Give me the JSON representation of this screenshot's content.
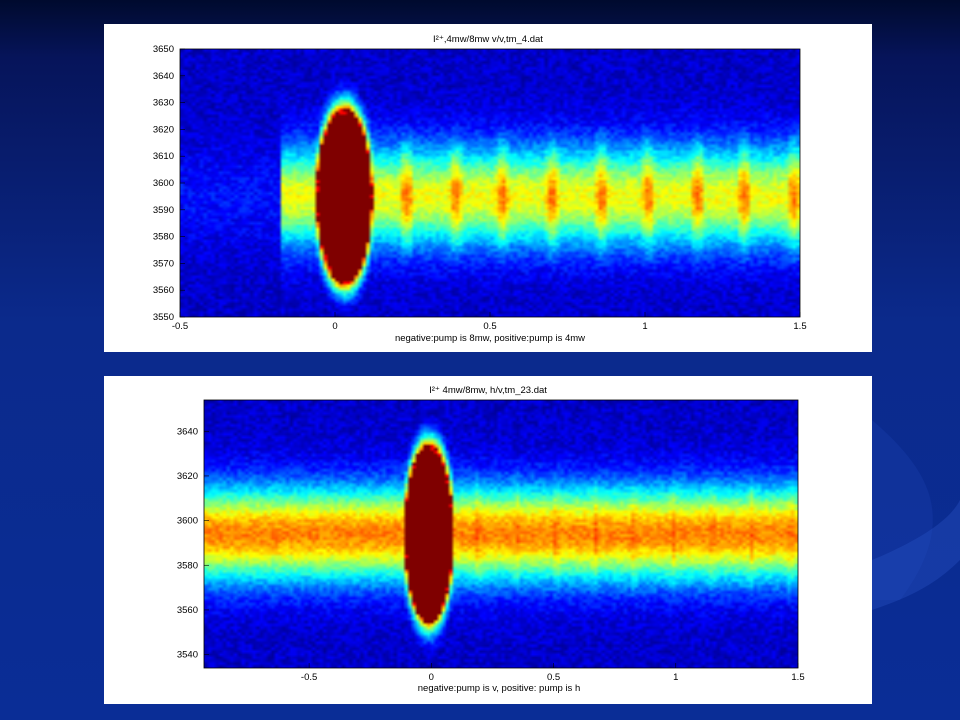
{
  "slide": {
    "background_top": "#000a2e",
    "background_bottom": "#0a2d96",
    "decoration": "faint-swoosh-right"
  },
  "chart_data": [
    {
      "type": "heatmap",
      "title": "I²⁺,4mw/8mw v/v,tm_4.dat",
      "xlabel": "negative:pump is 8mw, positive:pump is 4mw",
      "ylabel": "",
      "xlim": [
        -0.5,
        1.5
      ],
      "ylim": [
        3550,
        3650
      ],
      "xticks": [
        -0.5,
        0,
        0.5,
        1,
        1.5
      ],
      "xtick_labels": [
        "-0.5",
        "0",
        "0.5",
        "1",
        "1.5"
      ],
      "yticks": [
        3550,
        3560,
        3570,
        3580,
        3590,
        3600,
        3610,
        3620,
        3630,
        3640,
        3650
      ],
      "ytick_labels": [
        "3550",
        "3560",
        "3570",
        "3580",
        "3590",
        "3600",
        "3610",
        "3620",
        "3630",
        "3640",
        "3650"
      ],
      "colormap": "jet",
      "band_center": 3595,
      "band_half_width": 23,
      "band_start_x": -0.18,
      "baseline_intensity": 0.6,
      "main_peak": {
        "x": 0.03,
        "y": 3595,
        "half_width_x": 0.09,
        "half_height_y": 33,
        "intensity": 1.0
      },
      "revival_peaks_x": [
        0.23,
        0.39,
        0.54,
        0.7,
        0.86,
        1.01,
        1.17,
        1.32,
        1.48
      ],
      "revival_peak_intensity": 0.85
    },
    {
      "type": "heatmap",
      "title": "I²⁺ 4mw/8mw, h/v,tm_23.dat",
      "xlabel": "negative:pump is v, positive: pump is h",
      "ylabel": "",
      "xlim": [
        -0.93,
        1.5
      ],
      "ylim": [
        3534,
        3654
      ],
      "xticks": [
        -0.5,
        0,
        0.5,
        1,
        1.5
      ],
      "xtick_labels": [
        "-0.5",
        "0",
        "0.5",
        "1",
        "1.5"
      ],
      "yticks": [
        3540,
        3560,
        3580,
        3600,
        3620,
        3640
      ],
      "ytick_labels": [
        "3540",
        "3560",
        "3580",
        "3600",
        "3620",
        "3640"
      ],
      "colormap": "jet",
      "band_center": 3594,
      "band_half_width": 26,
      "band_start_x": -0.93,
      "baseline_intensity": 0.75,
      "main_peak": {
        "x": -0.01,
        "y": 3594,
        "half_width_x": 0.1,
        "half_height_y": 40,
        "intensity": 1.0
      },
      "revival_peaks_x": [
        0.19,
        0.35,
        0.51,
        0.67,
        0.83,
        0.99,
        1.15,
        1.31,
        1.47
      ],
      "revival_peak_intensity": 0.88
    }
  ]
}
